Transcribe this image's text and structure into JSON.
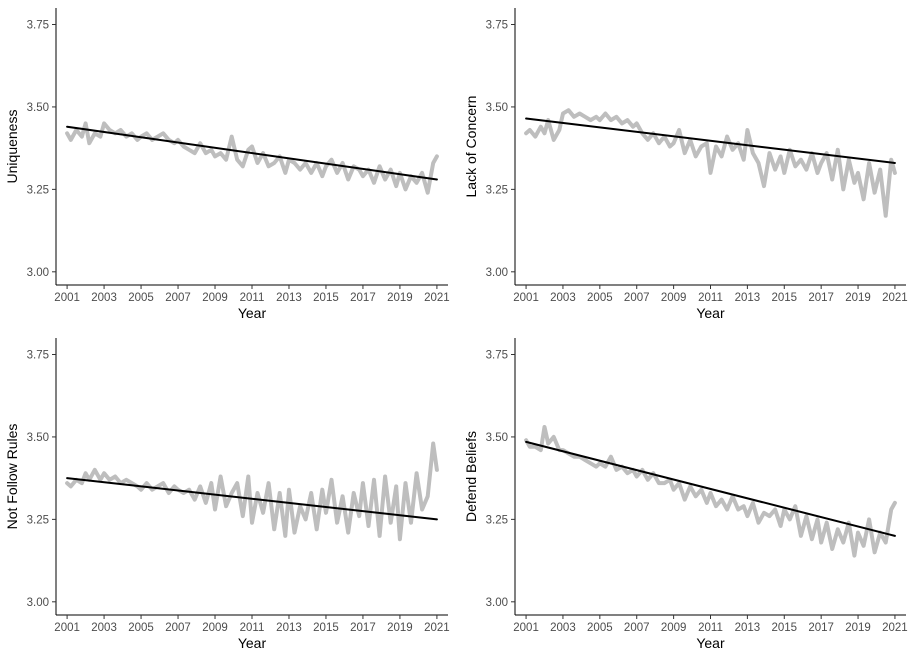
{
  "chart_data": [
    {
      "type": "line",
      "xlabel": "Year",
      "ylabel": "Uniqueness",
      "xlim": [
        2000.4,
        2021.6
      ],
      "ylim": [
        2.96,
        3.8
      ],
      "xticks": [
        "2001",
        "2003",
        "2005",
        "2007",
        "2009",
        "2011",
        "2013",
        "2015",
        "2017",
        "2019",
        "2021"
      ],
      "yticks": [
        "3.00",
        "3.25",
        "3.50",
        "3.75"
      ],
      "grid": false,
      "series": [
        {
          "role": "observed",
          "color": "#bebebe",
          "x": [
            2001.0,
            2001.2,
            2001.5,
            2001.8,
            2002.0,
            2002.2,
            2002.5,
            2002.8,
            2003.0,
            2003.3,
            2003.6,
            2003.9,
            2004.2,
            2004.5,
            2004.8,
            2005.0,
            2005.3,
            2005.6,
            2005.9,
            2006.2,
            2006.5,
            2006.8,
            2007.0,
            2007.3,
            2007.6,
            2007.9,
            2008.2,
            2008.5,
            2008.8,
            2009.0,
            2009.3,
            2009.6,
            2009.9,
            2010.2,
            2010.5,
            2010.8,
            2011.0,
            2011.3,
            2011.6,
            2011.9,
            2012.2,
            2012.5,
            2012.8,
            2013.0,
            2013.3,
            2013.6,
            2013.9,
            2014.2,
            2014.5,
            2014.8,
            2015.0,
            2015.3,
            2015.6,
            2015.9,
            2016.2,
            2016.5,
            2016.8,
            2017.0,
            2017.3,
            2017.6,
            2017.9,
            2018.2,
            2018.5,
            2018.8,
            2019.0,
            2019.3,
            2019.6,
            2019.9,
            2020.2,
            2020.5,
            2020.8,
            2021.0
          ],
          "y": [
            3.42,
            3.4,
            3.43,
            3.41,
            3.45,
            3.39,
            3.42,
            3.41,
            3.45,
            3.43,
            3.42,
            3.43,
            3.41,
            3.42,
            3.4,
            3.41,
            3.42,
            3.4,
            3.41,
            3.42,
            3.4,
            3.39,
            3.4,
            3.38,
            3.37,
            3.36,
            3.39,
            3.36,
            3.37,
            3.35,
            3.36,
            3.34,
            3.41,
            3.34,
            3.32,
            3.37,
            3.38,
            3.33,
            3.36,
            3.32,
            3.33,
            3.35,
            3.3,
            3.34,
            3.33,
            3.31,
            3.33,
            3.3,
            3.33,
            3.29,
            3.32,
            3.34,
            3.3,
            3.33,
            3.28,
            3.32,
            3.31,
            3.29,
            3.31,
            3.27,
            3.32,
            3.28,
            3.31,
            3.26,
            3.3,
            3.25,
            3.29,
            3.27,
            3.3,
            3.24,
            3.33,
            3.35
          ]
        },
        {
          "role": "trend",
          "color": "#000000",
          "x": [
            2001.0,
            2021.0
          ],
          "y": [
            3.44,
            3.28
          ]
        }
      ]
    },
    {
      "type": "line",
      "xlabel": "Year",
      "ylabel": "Lack of Concern",
      "xlim": [
        2000.4,
        2021.6
      ],
      "ylim": [
        2.96,
        3.8
      ],
      "xticks": [
        "2001",
        "2003",
        "2005",
        "2007",
        "2009",
        "2011",
        "2013",
        "2015",
        "2017",
        "2019",
        "2021"
      ],
      "yticks": [
        "3.00",
        "3.25",
        "3.50",
        "3.75"
      ],
      "grid": false,
      "series": [
        {
          "role": "observed",
          "color": "#bebebe",
          "x": [
            2001.0,
            2001.2,
            2001.5,
            2001.8,
            2002.0,
            2002.2,
            2002.5,
            2002.8,
            2003.0,
            2003.3,
            2003.6,
            2003.9,
            2004.2,
            2004.5,
            2004.8,
            2005.0,
            2005.3,
            2005.6,
            2005.9,
            2006.2,
            2006.5,
            2006.8,
            2007.0,
            2007.3,
            2007.6,
            2007.9,
            2008.2,
            2008.5,
            2008.8,
            2009.0,
            2009.3,
            2009.6,
            2009.9,
            2010.2,
            2010.5,
            2010.8,
            2011.0,
            2011.3,
            2011.6,
            2011.9,
            2012.2,
            2012.5,
            2012.8,
            2013.0,
            2013.3,
            2013.6,
            2013.9,
            2014.2,
            2014.5,
            2014.8,
            2015.0,
            2015.3,
            2015.6,
            2015.9,
            2016.2,
            2016.5,
            2016.8,
            2017.0,
            2017.3,
            2017.6,
            2017.9,
            2018.2,
            2018.5,
            2018.8,
            2019.0,
            2019.3,
            2019.6,
            2019.9,
            2020.2,
            2020.5,
            2020.8,
            2021.0
          ],
          "y": [
            3.42,
            3.43,
            3.41,
            3.44,
            3.42,
            3.46,
            3.4,
            3.43,
            3.48,
            3.49,
            3.47,
            3.48,
            3.47,
            3.46,
            3.47,
            3.46,
            3.48,
            3.46,
            3.47,
            3.45,
            3.46,
            3.44,
            3.45,
            3.42,
            3.4,
            3.42,
            3.39,
            3.41,
            3.38,
            3.39,
            3.43,
            3.36,
            3.4,
            3.35,
            3.38,
            3.39,
            3.3,
            3.38,
            3.35,
            3.41,
            3.37,
            3.39,
            3.34,
            3.43,
            3.36,
            3.33,
            3.26,
            3.36,
            3.31,
            3.35,
            3.3,
            3.37,
            3.32,
            3.34,
            3.31,
            3.36,
            3.3,
            3.33,
            3.36,
            3.28,
            3.37,
            3.25,
            3.34,
            3.27,
            3.3,
            3.22,
            3.33,
            3.24,
            3.31,
            3.17,
            3.34,
            3.3
          ]
        },
        {
          "role": "trend",
          "color": "#000000",
          "x": [
            2001.0,
            2021.0
          ],
          "y": [
            3.465,
            3.33
          ]
        }
      ]
    },
    {
      "type": "line",
      "xlabel": "Year",
      "ylabel": "Not Follow Rules",
      "xlim": [
        2000.4,
        2021.6
      ],
      "ylim": [
        2.96,
        3.8
      ],
      "xticks": [
        "2001",
        "2003",
        "2005",
        "2007",
        "2009",
        "2011",
        "2013",
        "2015",
        "2017",
        "2019",
        "2021"
      ],
      "yticks": [
        "3.00",
        "3.25",
        "3.50",
        "3.75"
      ],
      "grid": false,
      "series": [
        {
          "role": "observed",
          "color": "#bebebe",
          "x": [
            2001.0,
            2001.2,
            2001.5,
            2001.8,
            2002.0,
            2002.2,
            2002.5,
            2002.8,
            2003.0,
            2003.3,
            2003.6,
            2003.9,
            2004.2,
            2004.5,
            2004.8,
            2005.0,
            2005.3,
            2005.6,
            2005.9,
            2006.2,
            2006.5,
            2006.8,
            2007.0,
            2007.3,
            2007.6,
            2007.9,
            2008.2,
            2008.5,
            2008.8,
            2009.0,
            2009.3,
            2009.6,
            2009.9,
            2010.2,
            2010.5,
            2010.8,
            2011.0,
            2011.3,
            2011.6,
            2011.9,
            2012.2,
            2012.5,
            2012.8,
            2013.0,
            2013.3,
            2013.6,
            2013.9,
            2014.2,
            2014.5,
            2014.8,
            2015.0,
            2015.3,
            2015.6,
            2015.9,
            2016.2,
            2016.5,
            2016.8,
            2017.0,
            2017.3,
            2017.6,
            2017.9,
            2018.2,
            2018.5,
            2018.8,
            2019.0,
            2019.3,
            2019.6,
            2019.9,
            2020.2,
            2020.5,
            2020.8,
            2021.0
          ],
          "y": [
            3.36,
            3.35,
            3.37,
            3.36,
            3.39,
            3.37,
            3.4,
            3.37,
            3.39,
            3.37,
            3.38,
            3.36,
            3.37,
            3.36,
            3.35,
            3.34,
            3.36,
            3.34,
            3.35,
            3.36,
            3.33,
            3.35,
            3.34,
            3.33,
            3.34,
            3.31,
            3.35,
            3.3,
            3.36,
            3.28,
            3.38,
            3.29,
            3.33,
            3.36,
            3.26,
            3.38,
            3.24,
            3.33,
            3.27,
            3.36,
            3.22,
            3.33,
            3.2,
            3.34,
            3.21,
            3.29,
            3.25,
            3.33,
            3.22,
            3.34,
            3.27,
            3.37,
            3.24,
            3.32,
            3.21,
            3.33,
            3.26,
            3.36,
            3.23,
            3.37,
            3.2,
            3.38,
            3.24,
            3.35,
            3.19,
            3.36,
            3.24,
            3.39,
            3.28,
            3.32,
            3.48,
            3.4
          ]
        },
        {
          "role": "trend",
          "color": "#000000",
          "x": [
            2001.0,
            2021.0
          ],
          "y": [
            3.375,
            3.25
          ]
        }
      ]
    },
    {
      "type": "line",
      "xlabel": "Year",
      "ylabel": "Defend Beliefs",
      "xlim": [
        2000.4,
        2021.6
      ],
      "ylim": [
        2.96,
        3.8
      ],
      "xticks": [
        "2001",
        "2003",
        "2005",
        "2007",
        "2009",
        "2011",
        "2013",
        "2015",
        "2017",
        "2019",
        "2021"
      ],
      "yticks": [
        "3.00",
        "3.25",
        "3.50",
        "3.75"
      ],
      "grid": false,
      "series": [
        {
          "role": "observed",
          "color": "#bebebe",
          "x": [
            2001.0,
            2001.2,
            2001.5,
            2001.8,
            2002.0,
            2002.2,
            2002.5,
            2002.8,
            2003.0,
            2003.3,
            2003.6,
            2003.9,
            2004.2,
            2004.5,
            2004.8,
            2005.0,
            2005.3,
            2005.6,
            2005.9,
            2006.2,
            2006.5,
            2006.8,
            2007.0,
            2007.3,
            2007.6,
            2007.9,
            2008.2,
            2008.5,
            2008.8,
            2009.0,
            2009.3,
            2009.6,
            2009.9,
            2010.2,
            2010.5,
            2010.8,
            2011.0,
            2011.3,
            2011.6,
            2011.9,
            2012.2,
            2012.5,
            2012.8,
            2013.0,
            2013.3,
            2013.6,
            2013.9,
            2014.2,
            2014.5,
            2014.8,
            2015.0,
            2015.3,
            2015.6,
            2015.9,
            2016.2,
            2016.5,
            2016.8,
            2017.0,
            2017.3,
            2017.6,
            2017.9,
            2018.2,
            2018.5,
            2018.8,
            2019.0,
            2019.3,
            2019.6,
            2019.9,
            2020.2,
            2020.5,
            2020.8,
            2021.0
          ],
          "y": [
            3.49,
            3.47,
            3.47,
            3.46,
            3.53,
            3.48,
            3.5,
            3.46,
            3.46,
            3.45,
            3.44,
            3.44,
            3.43,
            3.42,
            3.41,
            3.42,
            3.41,
            3.44,
            3.4,
            3.41,
            3.39,
            3.4,
            3.38,
            3.4,
            3.37,
            3.39,
            3.36,
            3.36,
            3.37,
            3.34,
            3.36,
            3.31,
            3.35,
            3.32,
            3.34,
            3.3,
            3.33,
            3.29,
            3.31,
            3.28,
            3.32,
            3.28,
            3.29,
            3.26,
            3.3,
            3.24,
            3.27,
            3.26,
            3.28,
            3.23,
            3.28,
            3.25,
            3.29,
            3.2,
            3.26,
            3.19,
            3.25,
            3.18,
            3.24,
            3.16,
            3.22,
            3.18,
            3.24,
            3.14,
            3.21,
            3.17,
            3.25,
            3.15,
            3.21,
            3.18,
            3.28,
            3.3
          ]
        },
        {
          "role": "trend",
          "color": "#000000",
          "x": [
            2001.0,
            2021.0
          ],
          "y": [
            3.485,
            3.2
          ]
        }
      ]
    }
  ]
}
